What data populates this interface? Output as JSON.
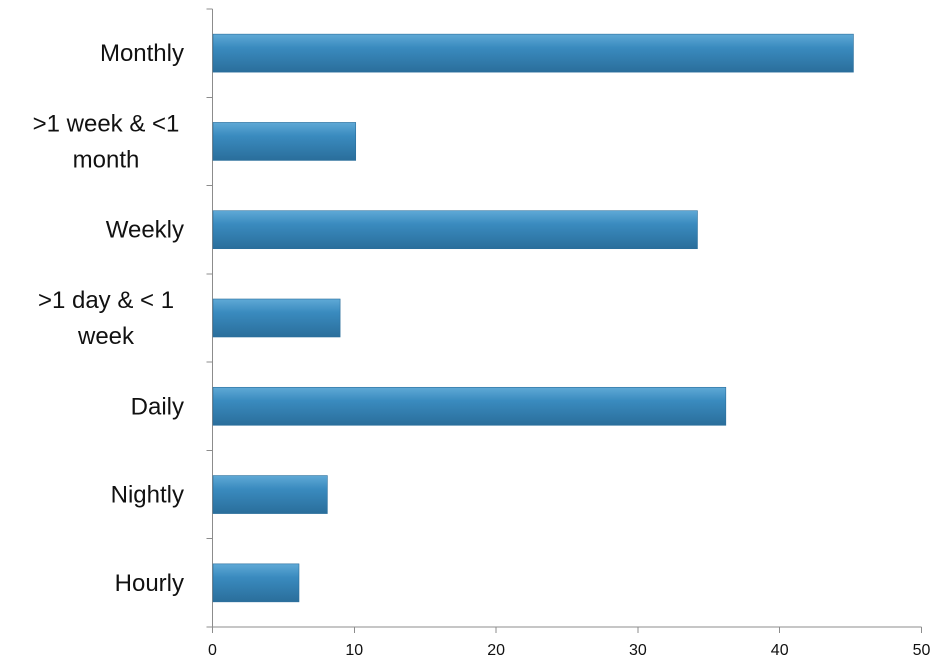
{
  "chart_data": {
    "type": "bar",
    "orientation": "horizontal",
    "categories": [
      ">1 week & <1 month",
      ">1 day & < 1 week",
      "Monthly",
      "Weekly",
      "Daily",
      "Nightly",
      "Hourly"
    ],
    "display_order_top_to_bottom": [
      "Monthly",
      ">1 week & <1 month",
      "Weekly",
      ">1 day & < 1 week",
      "Daily",
      "Nightly",
      "Hourly"
    ],
    "category_labels_lines": {
      "Monthly": [
        "Monthly"
      ],
      ">1 week & <1 month": [
        ">1 week & <1",
        "month"
      ],
      "Weekly": [
        "Weekly"
      ],
      ">1 day & < 1 week": [
        ">1 day & < 1",
        "week"
      ],
      "Daily": [
        "Daily"
      ],
      "Nightly": [
        "Nightly"
      ],
      "Hourly": [
        "Hourly"
      ]
    },
    "values": {
      "Monthly": 45.2,
      ">1 week & <1 month": 10.1,
      "Weekly": 34.2,
      ">1 day & < 1 week": 9.0,
      "Daily": 36.2,
      "Nightly": 8.1,
      "Hourly": 6.1
    },
    "xlim": [
      0,
      50
    ],
    "xticks": [
      0,
      10,
      20,
      30,
      40,
      50
    ],
    "title": "",
    "xlabel": "",
    "ylabel": "",
    "grid": false,
    "legend": "none",
    "bar_color": "#2f7fae"
  }
}
